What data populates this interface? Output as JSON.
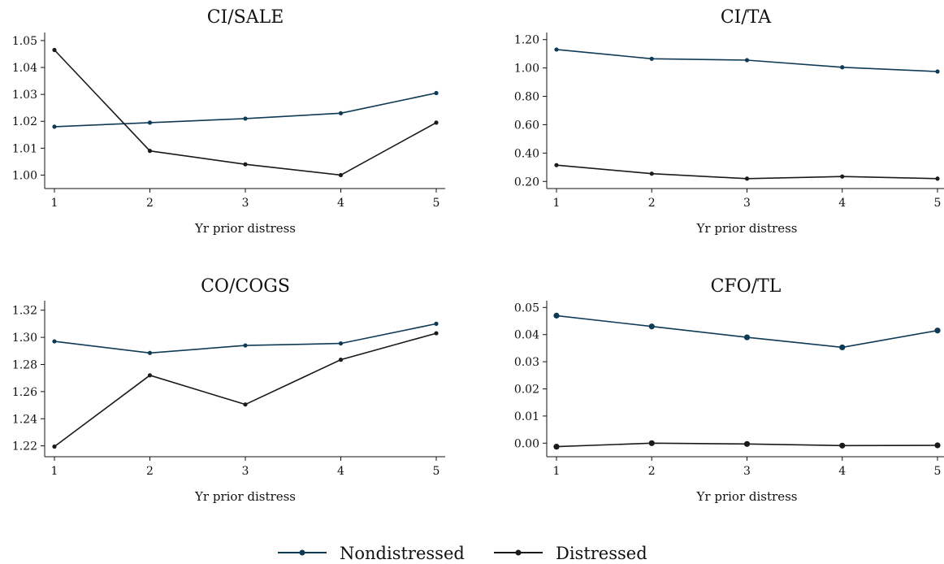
{
  "colors": {
    "nondistressed": "#0f3a55",
    "distressed": "#1a1a1a"
  },
  "legend": [
    {
      "name": "Nondistressed",
      "color": "#0f3a55"
    },
    {
      "name": "Distressed",
      "color": "#1a1a1a"
    }
  ],
  "chart_data": [
    {
      "type": "line",
      "title": "CI/SALE",
      "xlabel": "Yr prior distress",
      "x": [
        1,
        2,
        3,
        4,
        5
      ],
      "ylim": [
        0.995,
        1.053
      ],
      "yticks": [
        "1.00",
        "1.01",
        "1.02",
        "1.03",
        "1.04",
        "1.05"
      ],
      "series": [
        {
          "name": "Nondistressed",
          "values": [
            1.018,
            1.0195,
            1.021,
            1.023,
            1.0305
          ]
        },
        {
          "name": "Distressed",
          "values": [
            1.0465,
            1.009,
            1.004,
            1.0,
            1.0195
          ]
        }
      ]
    },
    {
      "type": "line",
      "title": "CI/TA",
      "xlabel": "Yr prior distress",
      "x": [
        1,
        2,
        3,
        4,
        5
      ],
      "ylim": [
        0.15,
        1.25
      ],
      "yticks": [
        "0.20",
        "0.40",
        "0.60",
        "0.80",
        "1.00",
        "1.20"
      ],
      "series": [
        {
          "name": "Nondistressed",
          "values": [
            1.13,
            1.065,
            1.055,
            1.005,
            0.975
          ]
        },
        {
          "name": "Distressed",
          "values": [
            0.315,
            0.255,
            0.22,
            0.235,
            0.22
          ]
        }
      ]
    },
    {
      "type": "line",
      "title": "CO/COGS",
      "xlabel": "Yr prior distress",
      "x": [
        1,
        2,
        3,
        4,
        5
      ],
      "ylim": [
        1.212,
        1.327
      ],
      "yticks": [
        "1.22",
        "1.24",
        "1.26",
        "1.28",
        "1.30",
        "1.32"
      ],
      "series": [
        {
          "name": "Nondistressed",
          "values": [
            1.297,
            1.2885,
            1.294,
            1.2955,
            1.31
          ]
        },
        {
          "name": "Distressed",
          "values": [
            1.2195,
            1.272,
            1.2505,
            1.2835,
            1.303
          ]
        }
      ]
    },
    {
      "type": "line",
      "title": "CFO/TL",
      "xlabel": "Yr prior distress",
      "x": [
        1,
        2,
        3,
        4,
        5
      ],
      "ylim": [
        -0.005,
        0.0525
      ],
      "yticks": [
        "0.00",
        "0.01",
        "0.02",
        "0.03",
        "0.04",
        "0.05"
      ],
      "series": [
        {
          "name": "Nondistressed",
          "values": [
            0.047,
            0.043,
            0.039,
            0.0353,
            0.0415
          ]
        },
        {
          "name": "Distressed",
          "values": [
            -0.0013,
            0.0,
            -0.0003,
            -0.0009,
            -0.0008
          ]
        }
      ]
    }
  ]
}
